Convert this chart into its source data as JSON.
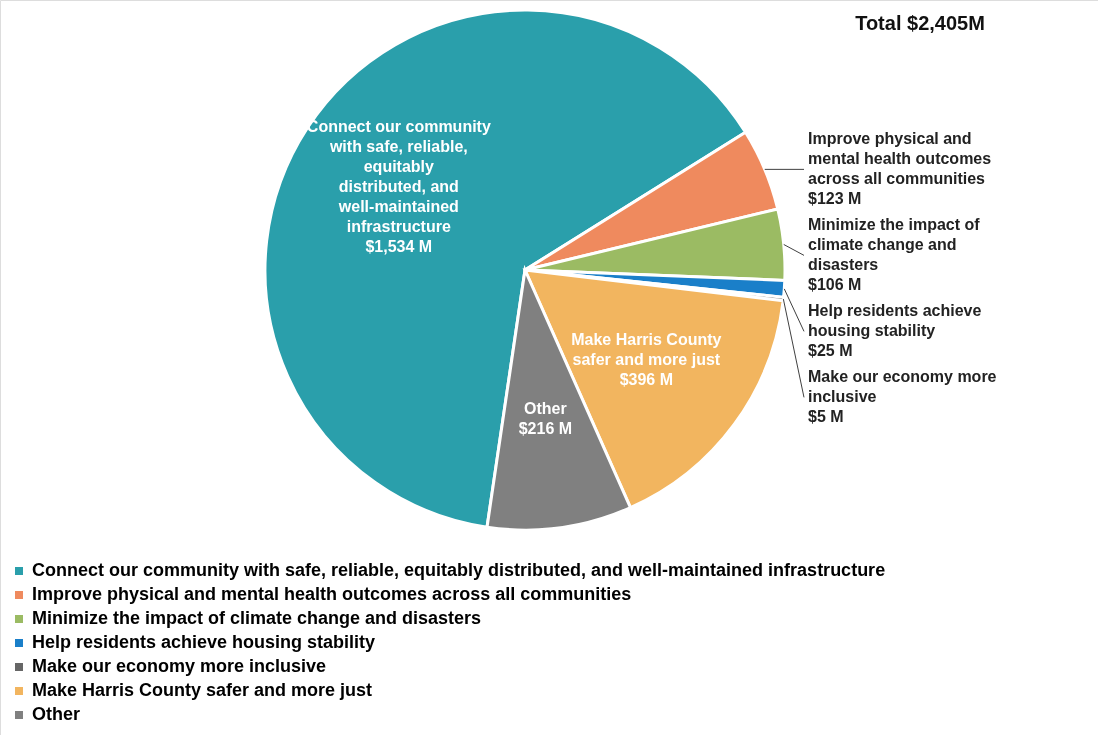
{
  "chart_data": {
    "type": "pie",
    "title": "Total $2,405M",
    "categories": [
      "Connect our community with safe, reliable, equitably distributed, and well-maintained infrastructure",
      "Improve physical and mental health outcomes across all communities",
      "Minimize the impact of climate change and disasters",
      "Help residents achieve housing stability",
      "Make our economy more inclusive",
      "Make Harris County safer and more just",
      "Other"
    ],
    "values": [
      1534,
      123,
      106,
      25,
      5,
      396,
      216
    ],
    "colors": [
      "#2a9fab",
      "#ef8a5e",
      "#9bbb63",
      "#1a7fc9",
      "#666666",
      "#f2b55f",
      "#808080"
    ],
    "value_labels": [
      "$1,534 M",
      "$123 M",
      "$106 M",
      "$25 M",
      "$5 M",
      "$396 M",
      "$216 M"
    ],
    "legend": "bottom"
  }
}
